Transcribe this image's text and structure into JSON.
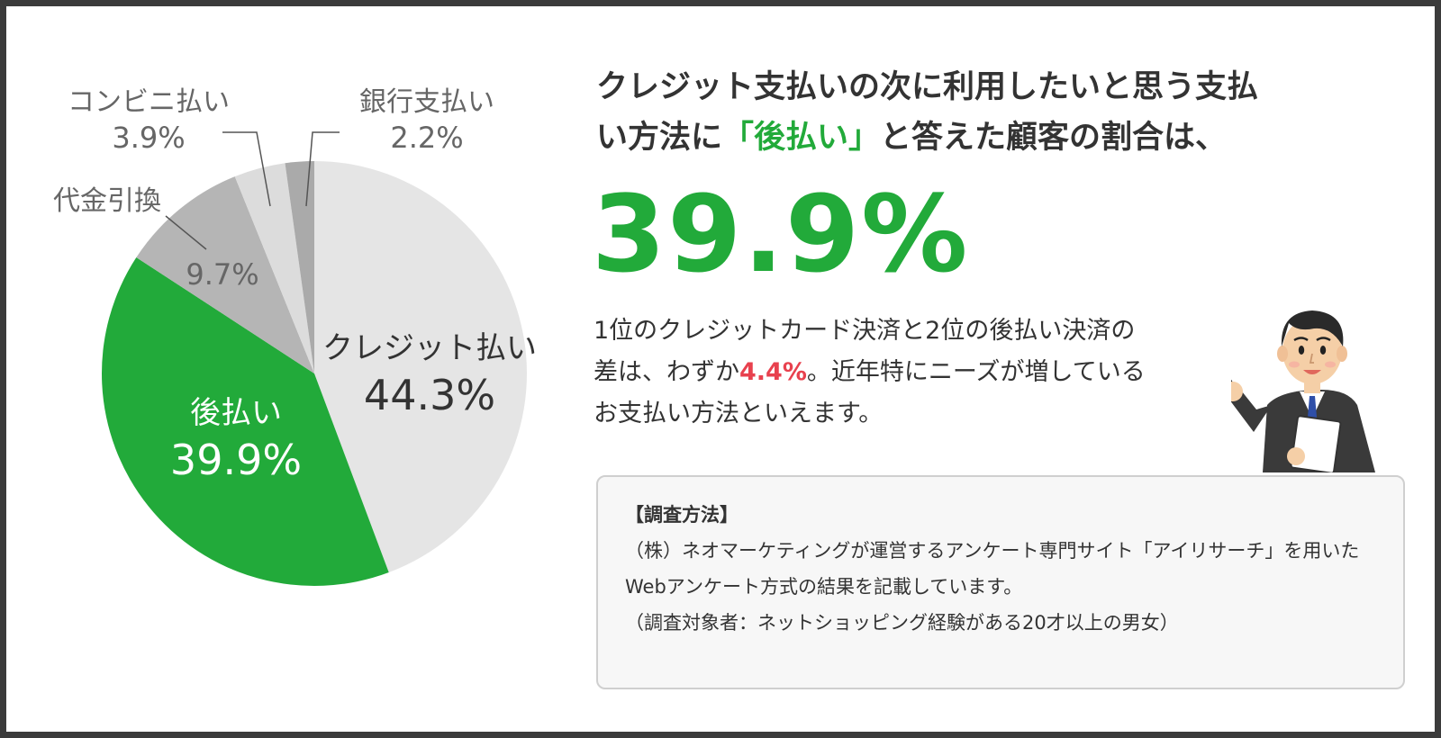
{
  "headline": {
    "line1": "クレジット支払いの次に利用したいと思う支払",
    "line2_before": "い方法に",
    "line2_highlight": "「後払い」",
    "line2_after": "と答えた顧客の割合は、"
  },
  "big_percent": "39.9%",
  "description": {
    "line1": "1位のクレジットカード決済と2位の後払い決済の",
    "line2_before": "差は、わずか",
    "line2_highlight": "4.4%",
    "line2_after": "。近年特にニーズが増している",
    "line3": "お支払い方法といえます。"
  },
  "method": {
    "title": "【調査方法】",
    "line1": "（株）ネオマーケティングが運営するアンケート専門サイト「アイリサーチ」を用いた",
    "line2": "Webアンケート方式の結果を記載しています。",
    "line3": "（調査対象者：ネットショッピング経験がある20才以上の男女）"
  },
  "colors": {
    "accent_green": "#22aa3a",
    "highlight_red": "#e8414e",
    "frame": "#3b3b3b"
  },
  "chart_data": {
    "type": "pie",
    "slices": [
      {
        "label": "クレジット払い",
        "value": 44.3,
        "value_label": "44.3%",
        "color": "#e5e5e5"
      },
      {
        "label": "後払い",
        "value": 39.9,
        "value_label": "39.9%",
        "color": "#22aa3a"
      },
      {
        "label": "代金引換",
        "value": 9.7,
        "value_label": "9.7%",
        "color": "#b5b5b5"
      },
      {
        "label": "コンビニ払い",
        "value": 3.9,
        "value_label": "3.9%",
        "color": "#dcdcdc"
      },
      {
        "label": "銀行支払い",
        "value": 2.2,
        "value_label": "2.2%",
        "color": "#aaaaaa"
      }
    ]
  }
}
